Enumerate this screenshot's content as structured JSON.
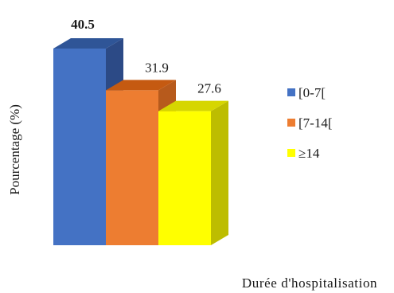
{
  "chart_data": {
    "type": "bar",
    "categories": [
      "[0-7[",
      "[7-14[",
      "≥14"
    ],
    "values": [
      40.5,
      31.9,
      27.6
    ],
    "data_labels": [
      "40.5",
      "31.9",
      "27.6"
    ],
    "colors": [
      "#4472C4",
      "#ED7D31",
      "#FFFF00"
    ],
    "side_colors": [
      "#2C4A86",
      "#B75A1C",
      "#BDBD00"
    ],
    "top_colors": [
      "#2F5597",
      "#C55A11",
      "#D6D600"
    ],
    "title": "",
    "xlabel": "Durée d'hospitalisation",
    "ylabel": "Pourcentage (%)",
    "ylim": [
      0,
      40.5
    ],
    "legend": {
      "placement": "right",
      "entries": [
        "[0-7[",
        "[7-14[",
        "≥14"
      ]
    },
    "grid": false,
    "style": "3d-bar"
  }
}
